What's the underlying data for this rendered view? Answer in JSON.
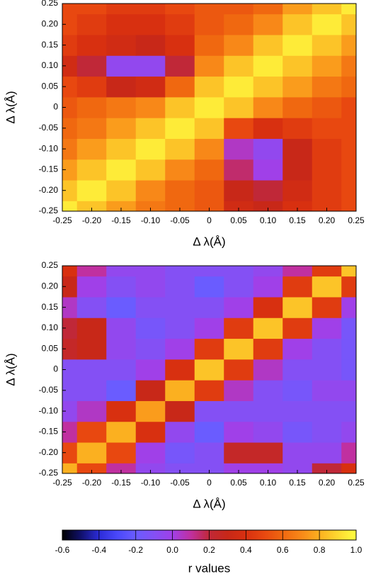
{
  "chart_data": [
    {
      "type": "heatmap",
      "xlabel": "Δ λ(Å)",
      "ylabel": "Δ λ(Å)",
      "x": [
        -0.25,
        -0.2,
        -0.15,
        -0.1,
        -0.05,
        0,
        0.05,
        0.1,
        0.15,
        0.2,
        0.25
      ],
      "y": [
        -0.25,
        -0.2,
        -0.15,
        -0.1,
        -0.05,
        0,
        0.05,
        0.1,
        0.15,
        0.2,
        0.25
      ],
      "z": [
        [
          0.95,
          0.85,
          0.75,
          0.65,
          0.6,
          0.55,
          0.35,
          0.3,
          0.4,
          0.45,
          0.5
        ],
        [
          0.85,
          0.95,
          0.85,
          0.7,
          0.6,
          0.55,
          0.3,
          0.2,
          0.35,
          0.45,
          0.5
        ],
        [
          0.75,
          0.85,
          0.95,
          0.85,
          0.7,
          0.6,
          0.15,
          0.0,
          0.3,
          0.45,
          0.5
        ],
        [
          0.65,
          0.75,
          0.85,
          0.95,
          0.85,
          0.7,
          0.05,
          -0.05,
          0.3,
          0.45,
          0.5
        ],
        [
          0.6,
          0.65,
          0.75,
          0.85,
          0.95,
          0.85,
          0.5,
          0.4,
          0.45,
          0.5,
          0.5
        ],
        [
          0.55,
          0.6,
          0.65,
          0.7,
          0.85,
          0.95,
          0.85,
          0.7,
          0.6,
          0.55,
          0.5
        ],
        [
          0.5,
          0.45,
          0.3,
          0.35,
          0.6,
          0.85,
          0.95,
          0.85,
          0.75,
          0.65,
          0.6
        ],
        [
          0.35,
          0.2,
          -0.05,
          -0.05,
          0.2,
          0.7,
          0.85,
          0.95,
          0.85,
          0.75,
          0.65
        ],
        [
          0.45,
          0.4,
          0.35,
          0.3,
          0.4,
          0.6,
          0.7,
          0.85,
          0.95,
          0.85,
          0.75
        ],
        [
          0.5,
          0.45,
          0.4,
          0.4,
          0.45,
          0.55,
          0.6,
          0.7,
          0.85,
          0.95,
          0.85
        ],
        [
          0.5,
          0.5,
          0.45,
          0.45,
          0.5,
          0.55,
          0.55,
          0.6,
          0.75,
          0.85,
          0.95
        ]
      ],
      "xlim": [
        -0.25,
        0.25
      ],
      "ylim": [
        -0.25,
        0.25
      ],
      "xticks": [
        -0.25,
        {
          "value": -0.2,
          "label": "-0.20"
        },
        -0.15,
        {
          "value": -0.1,
          "label": "-0.10"
        },
        -0.05,
        0,
        0.05,
        {
          "value": 0.1,
          "label": "0.10"
        },
        0.15,
        {
          "value": 0.2,
          "label": "0.20"
        },
        0.25
      ],
      "yticks": [
        -0.25,
        {
          "value": -0.2,
          "label": "-0.20"
        },
        -0.15,
        {
          "value": -0.1,
          "label": "-0.10"
        },
        -0.05,
        0,
        0.05,
        {
          "value": 0.1,
          "label": "0.10"
        },
        0.15,
        {
          "value": 0.2,
          "label": "0.20"
        },
        0.25
      ]
    },
    {
      "type": "heatmap",
      "xlabel": "Δ λ(Å)",
      "ylabel": "Δ λ(Å)",
      "x": [
        -0.25,
        -0.2,
        -0.15,
        -0.1,
        -0.05,
        0,
        0.05,
        0.1,
        0.15,
        0.2,
        0.25
      ],
      "y": [
        -0.25,
        -0.2,
        -0.15,
        -0.1,
        -0.05,
        0,
        0.05,
        0.1,
        0.15,
        0.2,
        0.25
      ],
      "z": [
        [
          0.8,
          0.5,
          0.1,
          -0.05,
          -0.1,
          -0.1,
          0.0,
          0.0,
          -0.05,
          0.2,
          0.4
        ],
        [
          0.5,
          0.8,
          0.5,
          0.0,
          -0.15,
          -0.1,
          0.25,
          0.25,
          -0.05,
          -0.05,
          0.1
        ],
        [
          0.1,
          0.5,
          0.8,
          0.4,
          -0.05,
          -0.2,
          0.0,
          -0.05,
          -0.15,
          -0.1,
          -0.05
        ],
        [
          -0.05,
          0.05,
          0.4,
          0.75,
          0.3,
          -0.1,
          -0.1,
          -0.1,
          -0.1,
          -0.1,
          -0.1
        ],
        [
          -0.1,
          -0.1,
          -0.2,
          0.3,
          0.8,
          0.45,
          0.05,
          -0.1,
          -0.15,
          -0.05,
          -0.05
        ],
        [
          -0.1,
          -0.1,
          -0.1,
          0.0,
          0.4,
          0.85,
          0.45,
          0.05,
          -0.1,
          -0.1,
          -0.15
        ],
        [
          0.25,
          0.3,
          -0.05,
          -0.1,
          0.0,
          0.45,
          0.85,
          0.45,
          0.0,
          -0.1,
          -0.15
        ],
        [
          0.2,
          0.3,
          -0.05,
          -0.15,
          -0.1,
          0.0,
          0.45,
          0.85,
          0.45,
          0.0,
          -0.15
        ],
        [
          0.05,
          -0.1,
          -0.2,
          -0.1,
          -0.1,
          -0.1,
          0.0,
          0.4,
          0.85,
          0.45,
          0.0
        ],
        [
          0.3,
          0.0,
          -0.1,
          -0.05,
          -0.1,
          -0.2,
          -0.1,
          0.0,
          0.45,
          0.85,
          0.45
        ],
        [
          0.4,
          0.1,
          -0.05,
          -0.05,
          -0.1,
          -0.1,
          -0.1,
          -0.05,
          0.1,
          0.45,
          0.85
        ]
      ],
      "xlim": [
        -0.25,
        0.25
      ],
      "ylim": [
        -0.25,
        0.25
      ],
      "xticks": [
        -0.25,
        {
          "value": -0.2,
          "label": "-0.20"
        },
        -0.15,
        {
          "value": -0.1,
          "label": "-0.10"
        },
        -0.05,
        0,
        0.05,
        {
          "value": 0.1,
          "label": "0.10"
        },
        0.15,
        {
          "value": 0.2,
          "label": "0.20"
        },
        0.25
      ],
      "yticks": [
        -0.25,
        {
          "value": -0.2,
          "label": "-0.20"
        },
        -0.15,
        {
          "value": -0.1,
          "label": "-0.10"
        },
        -0.05,
        0,
        0.05,
        {
          "value": 0.1,
          "label": "0.10"
        },
        0.15,
        {
          "value": 0.2,
          "label": "0.20"
        },
        0.25
      ]
    },
    {
      "type": "colorbar",
      "label": "r values",
      "clim": [
        -0.6,
        1.0
      ],
      "colors": [
        "#000000",
        "#10106a",
        "#2c2cd8",
        "#4a48fa",
        "#6a5cff",
        "#8450f4",
        "#a040e8",
        "#c030a0",
        "#c02838",
        "#c82818",
        "#d83010",
        "#e84810",
        "#f06810",
        "#f88818",
        "#fbb020",
        "#fdd830",
        "#ffff40"
      ],
      "ticks": [
        -0.6,
        -0.4,
        -0.2,
        {
          "value": 0,
          "label": "0.0"
        },
        0.2,
        0.4,
        0.6,
        0.8,
        {
          "value": 1,
          "label": "1.0"
        }
      ]
    }
  ]
}
